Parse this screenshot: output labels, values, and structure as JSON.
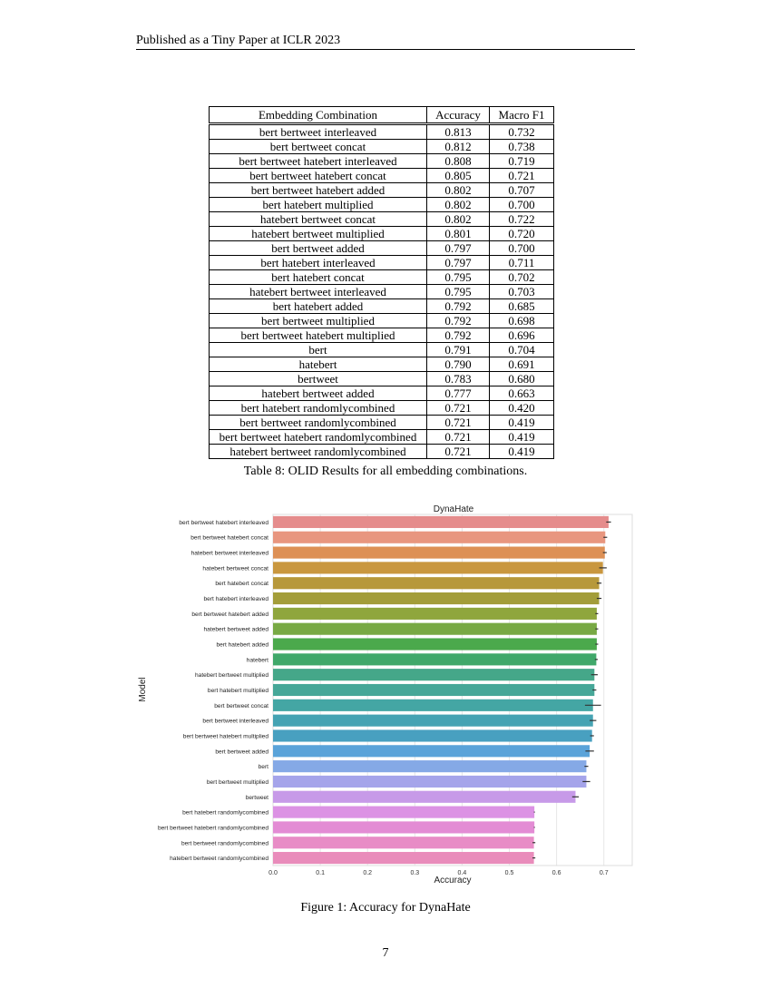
{
  "header": {
    "text": "Published as a Tiny Paper at ICLR 2023"
  },
  "table": {
    "headers": [
      "Embedding Combination",
      "Accuracy",
      "Macro F1"
    ],
    "rows": [
      [
        "bert bertweet interleaved",
        "0.813",
        "0.732"
      ],
      [
        "bert bertweet concat",
        "0.812",
        "0.738"
      ],
      [
        "bert bertweet hatebert interleaved",
        "0.808",
        "0.719"
      ],
      [
        "bert bertweet hatebert concat",
        "0.805",
        "0.721"
      ],
      [
        "bert bertweet hatebert added",
        "0.802",
        "0.707"
      ],
      [
        "bert hatebert multiplied",
        "0.802",
        "0.700"
      ],
      [
        "hatebert bertweet concat",
        "0.802",
        "0.722"
      ],
      [
        "hatebert bertweet multiplied",
        "0.801",
        "0.720"
      ],
      [
        "bert bertweet added",
        "0.797",
        "0.700"
      ],
      [
        "bert hatebert interleaved",
        "0.797",
        "0.711"
      ],
      [
        "bert hatebert concat",
        "0.795",
        "0.702"
      ],
      [
        "hatebert bertweet interleaved",
        "0.795",
        "0.703"
      ],
      [
        "bert hatebert added",
        "0.792",
        "0.685"
      ],
      [
        "bert bertweet multiplied",
        "0.792",
        "0.698"
      ],
      [
        "bert bertweet hatebert multiplied",
        "0.792",
        "0.696"
      ],
      [
        "bert",
        "0.791",
        "0.704"
      ],
      [
        "hatebert",
        "0.790",
        "0.691"
      ],
      [
        "bertweet",
        "0.783",
        "0.680"
      ],
      [
        "hatebert bertweet added",
        "0.777",
        "0.663"
      ],
      [
        "bert hatebert randomlycombined",
        "0.721",
        "0.420"
      ],
      [
        "bert bertweet randomlycombined",
        "0.721",
        "0.419"
      ],
      [
        "bert bertweet hatebert randomlycombined",
        "0.721",
        "0.419"
      ],
      [
        "hatebert bertweet randomlycombined",
        "0.721",
        "0.419"
      ]
    ],
    "caption": "Table 8: OLID Results for all embedding combinations."
  },
  "figure": {
    "caption": "Figure 1: Accuracy for DynaHate"
  },
  "chart_data": {
    "type": "bar",
    "orientation": "horizontal",
    "title": "DynaHate",
    "xlabel": "Accuracy",
    "ylabel": "Model",
    "xlim": [
      0,
      0.76
    ],
    "xticks": [
      "0.0",
      "0.1",
      "0.2",
      "0.3",
      "0.4",
      "0.5",
      "0.6",
      "0.7"
    ],
    "grid": true,
    "categories": [
      "bert bertweet hatebert interleaved",
      "bert bertweet hatebert concat",
      "hatebert bertweet interleaved",
      "hatebert bertweet concat",
      "bert hatebert concat",
      "bert hatebert interleaved",
      "bert bertweet hatebert added",
      "hatebert bertweet added",
      "bert hatebert added",
      "hatebert",
      "hatebert bertweet multiplied",
      "bert hatebert multiplied",
      "bert bertweet concat",
      "bert bertweet interleaved",
      "bert bertweet hatebert multiplied",
      "bert bertweet added",
      "bert",
      "bert bertweet multiplied",
      "bertweet",
      "bert hatebert randomlycombined",
      "bert bertweet hatebert randomlycombined",
      "bert bertweet randomlycombined",
      "hatebert bertweet randomlycombined"
    ],
    "values": [
      0.71,
      0.703,
      0.702,
      0.698,
      0.69,
      0.69,
      0.685,
      0.685,
      0.685,
      0.684,
      0.68,
      0.68,
      0.677,
      0.677,
      0.675,
      0.67,
      0.663,
      0.663,
      0.64,
      0.553,
      0.553,
      0.552,
      0.552
    ],
    "errors": [
      0.005,
      0.004,
      0.004,
      0.008,
      0.005,
      0.005,
      0.003,
      0.003,
      0.003,
      0.003,
      0.007,
      0.004,
      0.017,
      0.007,
      0.004,
      0.009,
      0.004,
      0.008,
      0.007,
      0.001,
      0.001,
      0.003,
      0.003
    ],
    "colors": [
      "#e58c8c",
      "#e8967f",
      "#dd9055",
      "#c9973f",
      "#b7983b",
      "#a39d3a",
      "#8fa63d",
      "#78a944",
      "#4ba94c",
      "#40a86a",
      "#45a789",
      "#46a798",
      "#44a6a4",
      "#45a3b3",
      "#48a0c0",
      "#5aa3d9",
      "#85a9e6",
      "#a5a4ea",
      "#c79ae8",
      "#dc92e4",
      "#e38cd4",
      "#e88cc6",
      "#e98cbb"
    ]
  },
  "page_number": "7"
}
